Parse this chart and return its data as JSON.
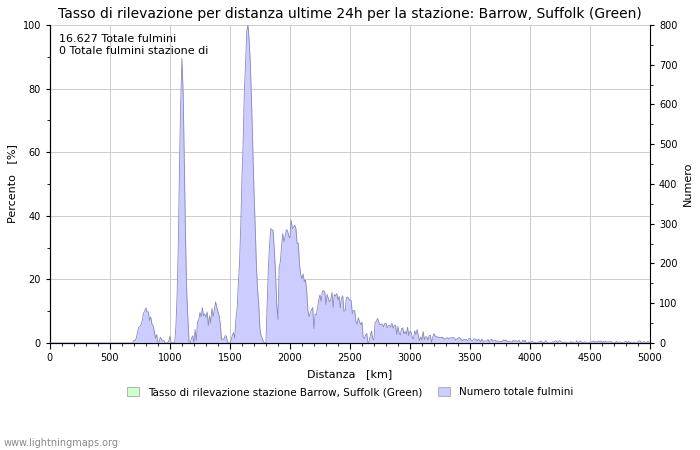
{
  "title": "Tasso di rilevazione per distanza ultime 24h per la stazione: Barrow, Suffolk (Green)",
  "xlabel": "Distanza   [km]",
  "ylabel_left": "Percento   [%]",
  "ylabel_right": "Numero",
  "annotation_line1": "16.627 Totale fulmini",
  "annotation_line2": "0 Totale fulmini stazione di",
  "xlim": [
    0,
    5000
  ],
  "ylim_left": [
    0,
    100
  ],
  "ylim_right": [
    0,
    800
  ],
  "xticks": [
    0,
    500,
    1000,
    1500,
    2000,
    2500,
    3000,
    3500,
    4000,
    4500,
    5000
  ],
  "yticks_left": [
    0,
    20,
    40,
    60,
    80,
    100
  ],
  "yticks_right": [
    0,
    100,
    200,
    300,
    400,
    500,
    600,
    700,
    800
  ],
  "legend_label_green": "Tasso di rilevazione stazione Barrow, Suffolk (Green)",
  "legend_label_blue": "Numero totale fulmini",
  "watermark": "www.lightningmaps.org",
  "fill_color_blue": "#ccccff",
  "fill_color_green": "#ccffcc",
  "line_color": "#8888bb",
  "bg_color": "#ffffff",
  "grid_color": "#cccccc",
  "title_fontsize": 10,
  "axis_fontsize": 8,
  "tick_fontsize": 7,
  "annotation_fontsize": 8
}
